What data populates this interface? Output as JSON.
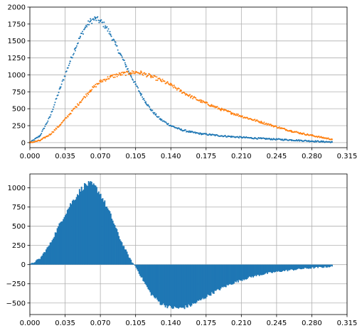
{
  "chart_data": [
    {
      "type": "scatter",
      "title": "",
      "xlabel": "",
      "ylabel": "",
      "xlim": [
        0,
        0.315
      ],
      "ylim": [
        -75,
        2000
      ],
      "grid": true,
      "xticks": [
        "0.000",
        "0.035",
        "0.070",
        "0.105",
        "0.140",
        "0.175",
        "0.210",
        "0.245",
        "0.280",
        "0.315"
      ],
      "yticks": [
        "0",
        "250",
        "500",
        "750",
        "1000",
        "1250",
        "1500",
        "1750",
        "2000"
      ],
      "series": [
        {
          "color": "#1f77b4",
          "x": [
            0.0,
            0.01,
            0.02,
            0.03,
            0.04,
            0.045,
            0.05,
            0.055,
            0.06,
            0.065,
            0.07,
            0.075,
            0.08,
            0.085,
            0.09,
            0.095,
            0.1,
            0.105,
            0.11,
            0.115,
            0.12,
            0.125,
            0.13,
            0.14,
            0.15,
            0.16,
            0.17,
            0.18,
            0.19,
            0.2,
            0.21,
            0.22,
            0.23,
            0.24,
            0.25,
            0.26,
            0.27,
            0.28,
            0.29,
            0.3
          ],
          "y": [
            0,
            100,
            380,
            800,
            1200,
            1390,
            1560,
            1700,
            1790,
            1830,
            1790,
            1720,
            1600,
            1450,
            1300,
            1150,
            1000,
            860,
            720,
            600,
            490,
            410,
            340,
            250,
            190,
            155,
            130,
            115,
            100,
            88,
            78,
            68,
            60,
            52,
            45,
            38,
            30,
            22,
            15,
            8
          ]
        },
        {
          "color": "#ff7f0e",
          "x": [
            0.0,
            0.01,
            0.02,
            0.03,
            0.04,
            0.05,
            0.06,
            0.07,
            0.08,
            0.09,
            0.1,
            0.105,
            0.11,
            0.12,
            0.13,
            0.14,
            0.15,
            0.16,
            0.17,
            0.18,
            0.19,
            0.2,
            0.21,
            0.22,
            0.23,
            0.24,
            0.25,
            0.26,
            0.27,
            0.28,
            0.29,
            0.3
          ],
          "y": [
            0,
            30,
            120,
            260,
            430,
            600,
            770,
            900,
            970,
            1010,
            1030,
            1040,
            1030,
            980,
            920,
            850,
            760,
            680,
            610,
            550,
            490,
            440,
            390,
            345,
            300,
            255,
            210,
            170,
            135,
            105,
            75,
            50
          ]
        }
      ]
    },
    {
      "type": "bar",
      "title": "",
      "xlabel": "",
      "ylabel": "",
      "xlim": [
        0,
        0.315
      ],
      "ylim": [
        -650,
        1180
      ],
      "grid": true,
      "xticks": [
        "0.000",
        "0.035",
        "0.070",
        "0.105",
        "0.140",
        "0.175",
        "0.210",
        "0.245",
        "0.280",
        "0.315"
      ],
      "yticks": [
        "−500",
        "−250",
        "0",
        "250",
        "500",
        "750",
        "1000"
      ],
      "series": [
        {
          "color": "#1f77b4",
          "x": [
            0.0,
            0.01,
            0.02,
            0.03,
            0.04,
            0.05,
            0.055,
            0.06,
            0.065,
            0.07,
            0.08,
            0.09,
            0.1,
            0.105,
            0.11,
            0.12,
            0.13,
            0.14,
            0.15,
            0.16,
            0.17,
            0.18,
            0.19,
            0.2,
            0.21,
            0.22,
            0.23,
            0.24,
            0.25,
            0.26,
            0.27,
            0.28,
            0.29,
            0.3
          ],
          "y": [
            0,
            80,
            270,
            540,
            780,
            970,
            1040,
            1050,
            1010,
            920,
            650,
            320,
            60,
            -30,
            -150,
            -380,
            -510,
            -560,
            -570,
            -530,
            -460,
            -380,
            -310,
            -250,
            -200,
            -160,
            -130,
            -105,
            -85,
            -70,
            -55,
            -45,
            -35,
            -25
          ]
        }
      ]
    }
  ]
}
